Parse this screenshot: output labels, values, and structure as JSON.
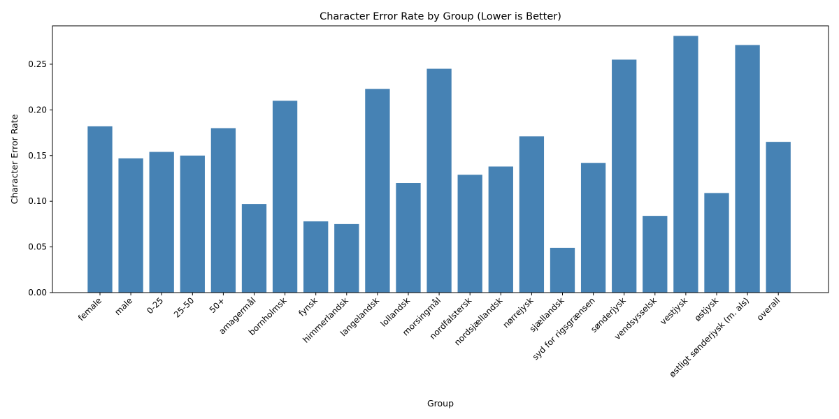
{
  "chart_data": {
    "type": "bar",
    "title": "Character Error Rate by Group (Lower is Better)",
    "xlabel": "Group",
    "ylabel": "Character Error Rate",
    "ylim": [
      0,
      0.292
    ],
    "yticks": [
      0.0,
      0.05,
      0.1,
      0.15,
      0.2,
      0.25
    ],
    "ytick_labels": [
      "0.00",
      "0.05",
      "0.10",
      "0.15",
      "0.20",
      "0.25"
    ],
    "grid": false,
    "bar_color": "#4682b4",
    "categories": [
      "female",
      "male",
      "0-25",
      "25-50",
      "50+",
      "amagermål",
      "bornholmsk",
      "fynsk",
      "himmerlandsk",
      "langelandsk",
      "lollandsk",
      "morsingmål",
      "nordfalstersk",
      "nordsjællandsk",
      "nørrejysk",
      "sjællandsk",
      "syd for rigsgrænsen",
      "sønderjysk",
      "vendsysselsk",
      "vestjysk",
      "østjysk",
      "østligt sønderjysk (m. als)",
      "overall"
    ],
    "values": [
      0.182,
      0.147,
      0.154,
      0.15,
      0.18,
      0.097,
      0.21,
      0.078,
      0.075,
      0.223,
      0.12,
      0.245,
      0.129,
      0.138,
      0.171,
      0.049,
      0.142,
      0.255,
      0.084,
      0.281,
      0.109,
      0.271,
      0.165
    ]
  }
}
